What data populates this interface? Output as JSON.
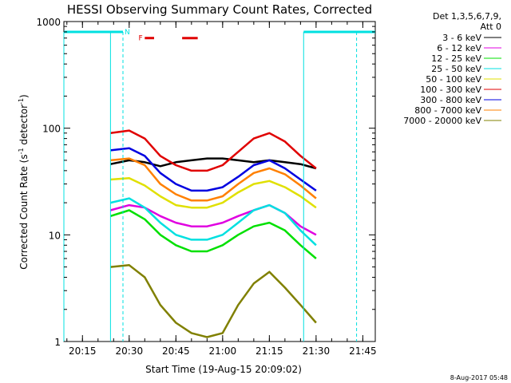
{
  "chart_data": {
    "type": "line",
    "title": "HESSI Observing Summary Count Rates, Corrected",
    "xlabel": "Start Time (19-Aug-15 20:09:02)",
    "ylabel_main": "Corrected Count Rate (s",
    "ylabel_exp1": "-1",
    "ylabel_mid": " detector",
    "ylabel_exp2": "-1",
    "ylabel_end": ")",
    "y_scale": "log",
    "ylim": [
      1,
      1000
    ],
    "xlim": [
      "20:09:02",
      "21:49:00"
    ],
    "x_ticks": [
      "20:15",
      "20:30",
      "20:45",
      "21:00",
      "21:15",
      "21:30",
      "21:45"
    ],
    "y_ticks": [
      "1",
      "10",
      "100",
      "1000"
    ],
    "legend_header_1": "Det 1,3,5,6,7,9,",
    "legend_header_2": "Att 0",
    "legend_position": "right",
    "grid": false,
    "series": [
      {
        "name": "3 - 6 keV",
        "color": "#000000",
        "x": [
          "20:24",
          "20:30",
          "20:35",
          "20:40",
          "20:45",
          "20:50",
          "20:55",
          "21:00",
          "21:05",
          "21:10",
          "21:15",
          "21:20",
          "21:25",
          "21:30"
        ],
        "y": [
          46,
          50,
          48,
          44,
          48,
          50,
          52,
          52,
          50,
          48,
          50,
          48,
          46,
          42
        ]
      },
      {
        "name": "6 - 12 keV",
        "color": "#e000e0",
        "x": [
          "20:24",
          "20:30",
          "20:35",
          "20:40",
          "20:45",
          "20:50",
          "20:55",
          "21:00",
          "21:05",
          "21:10",
          "21:15",
          "21:20",
          "21:25",
          "21:30"
        ],
        "y": [
          17,
          19,
          18,
          15,
          13,
          12,
          12,
          13,
          15,
          17,
          19,
          16,
          12,
          10
        ]
      },
      {
        "name": "12 - 25 keV",
        "color": "#00e000",
        "x": [
          "20:24",
          "20:30",
          "20:35",
          "20:40",
          "20:45",
          "20:50",
          "20:55",
          "21:00",
          "21:05",
          "21:10",
          "21:15",
          "21:20",
          "21:25",
          "21:30"
        ],
        "y": [
          15,
          17,
          14,
          10,
          8,
          7,
          7,
          8,
          10,
          12,
          13,
          11,
          8,
          6
        ]
      },
      {
        "name": "25 - 50 keV",
        "color": "#00e0e0",
        "x": [
          "20:24",
          "20:30",
          "20:35",
          "20:40",
          "20:45",
          "20:50",
          "20:55",
          "21:00",
          "21:05",
          "21:10",
          "21:15",
          "21:20",
          "21:25",
          "21:30"
        ],
        "y": [
          20,
          22,
          18,
          13,
          10,
          9,
          9,
          10,
          13,
          17,
          19,
          16,
          11,
          8
        ]
      },
      {
        "name": "50 - 100 keV",
        "color": "#e0e000",
        "x": [
          "20:24",
          "20:30",
          "20:35",
          "20:40",
          "20:45",
          "20:50",
          "20:55",
          "21:00",
          "21:05",
          "21:10",
          "21:15",
          "21:20",
          "21:25",
          "21:30"
        ],
        "y": [
          33,
          34,
          29,
          23,
          19,
          18,
          18,
          20,
          25,
          30,
          32,
          28,
          23,
          18
        ]
      },
      {
        "name": "100 - 300 keV",
        "color": "#e00000",
        "x": [
          "20:24",
          "20:30",
          "20:35",
          "20:40",
          "20:45",
          "20:50",
          "20:55",
          "21:00",
          "21:05",
          "21:10",
          "21:15",
          "21:20",
          "21:25",
          "21:30"
        ],
        "y": [
          90,
          95,
          80,
          55,
          45,
          40,
          40,
          45,
          60,
          80,
          90,
          75,
          55,
          42
        ]
      },
      {
        "name": "300 - 800 keV",
        "color": "#0000e0",
        "x": [
          "20:24",
          "20:30",
          "20:35",
          "20:40",
          "20:45",
          "20:50",
          "20:55",
          "21:00",
          "21:05",
          "21:10",
          "21:15",
          "21:20",
          "21:25",
          "21:30"
        ],
        "y": [
          62,
          65,
          55,
          38,
          30,
          26,
          26,
          28,
          35,
          45,
          50,
          42,
          33,
          26
        ]
      },
      {
        "name": "800 - 7000 keV",
        "color": "#ff8000",
        "x": [
          "20:24",
          "20:30",
          "20:35",
          "20:40",
          "20:45",
          "20:50",
          "20:55",
          "21:00",
          "21:05",
          "21:10",
          "21:15",
          "21:20",
          "21:25",
          "21:30"
        ],
        "y": [
          50,
          52,
          45,
          30,
          24,
          21,
          21,
          23,
          30,
          38,
          42,
          37,
          29,
          22
        ]
      },
      {
        "name": "7000 - 20000 keV",
        "color": "#808000",
        "x": [
          "20:24",
          "20:30",
          "20:35",
          "20:40",
          "20:45",
          "20:50",
          "20:55",
          "21:00",
          "21:05",
          "21:10",
          "21:15",
          "21:20",
          "21:25",
          "21:30"
        ],
        "y": [
          5,
          5.2,
          4,
          2.2,
          1.5,
          1.2,
          1.1,
          1.2,
          2.2,
          3.5,
          4.5,
          3.2,
          2.2,
          1.5
        ]
      }
    ],
    "annotations": {
      "night_color": "#00e0e0",
      "night_top_y": 800,
      "night_segments": [
        [
          "20:09:02",
          "20:28:00"
        ],
        [
          "21:26:00",
          "21:49:00"
        ]
      ],
      "night_solid_lines": [
        "20:09:02",
        "20:24:00",
        "21:26:00"
      ],
      "night_dashed_lines": [
        "20:28:00",
        "21:43:00"
      ],
      "night_label": "N",
      "night_label_x": "20:28:30",
      "flare_color": "#e00000",
      "flare_label": "F",
      "flare_label_x": "20:33:00",
      "flare_y": 700,
      "flare_segments": [
        [
          "20:35:00",
          "20:38:00"
        ],
        [
          "20:47:00",
          "20:52:00"
        ]
      ]
    }
  },
  "timestamp": "8-Aug-2017 05:48"
}
